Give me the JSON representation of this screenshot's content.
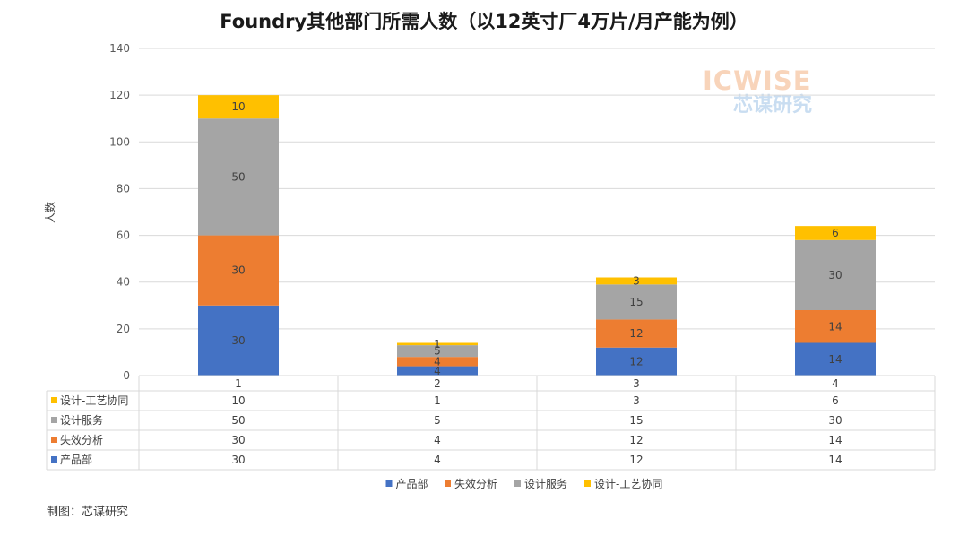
{
  "title": "Foundry其他部门所需人数（以12英寸厂4万片/月产能为例）",
  "source_note": "制图：芯谋研究",
  "watermark": {
    "en": "ICWISE",
    "cn": "芯谋研究"
  },
  "chart_data": {
    "type": "bar",
    "stacked": true,
    "categories": [
      "1",
      "2",
      "3",
      "4"
    ],
    "ylabel": "人数",
    "ylim": [
      0,
      140
    ],
    "yticks": [
      0,
      20,
      40,
      60,
      80,
      100,
      120,
      140
    ],
    "grid": true,
    "legend_position": "bottom",
    "data_table": true,
    "series": [
      {
        "name": "产品部",
        "color": "#4472c4",
        "values": [
          30,
          4,
          12,
          14
        ]
      },
      {
        "name": "失效分析",
        "color": "#ed7d31",
        "values": [
          30,
          4,
          12,
          14
        ]
      },
      {
        "name": "设计服务",
        "color": "#a5a5a5",
        "values": [
          50,
          5,
          15,
          30
        ]
      },
      {
        "name": "设计-工艺协同",
        "color": "#ffc000",
        "values": [
          10,
          1,
          3,
          6
        ]
      }
    ]
  }
}
